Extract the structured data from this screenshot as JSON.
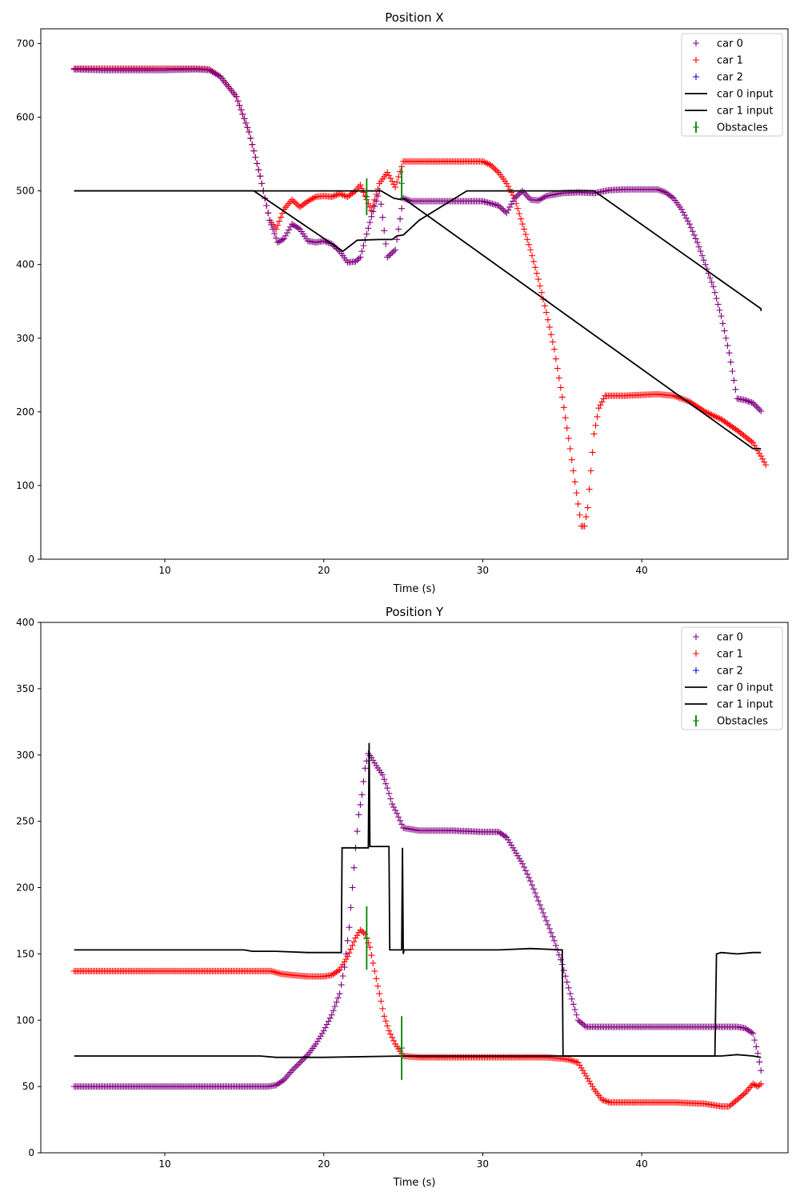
{
  "chart_data": [
    {
      "type": "scatter",
      "title": "Position X",
      "xlabel": "Time (s)",
      "ylabel": "",
      "xlim": [
        2.2,
        49.2
      ],
      "ylim": [
        0,
        720
      ],
      "xticks": [
        10,
        20,
        30,
        40
      ],
      "yticks": [
        0,
        100,
        200,
        300,
        400,
        500,
        600,
        700
      ],
      "legend_position": "top-right",
      "legend": [
        "car 0",
        "car 1",
        "car 2",
        "car 0 input",
        "car 1 input",
        "Obstacles"
      ],
      "series": [
        {
          "name": "car 0",
          "kind": "markers",
          "color": "#800080",
          "x": [
            4.3,
            6,
            8,
            10,
            12,
            12.8,
            13.5,
            14.5,
            15.3,
            16,
            16.6,
            17.1,
            17.5,
            18,
            18.5,
            19,
            19.5,
            20,
            20.5,
            21,
            21.5,
            22,
            22.3,
            23,
            23.5,
            24,
            24.5,
            25,
            25.5,
            26,
            27,
            28,
            29,
            30,
            31,
            31.5,
            32,
            32.5,
            33,
            33.5,
            34,
            35,
            36,
            37,
            38,
            39,
            40,
            41,
            41.5,
            42,
            42.5,
            43,
            43.5,
            44,
            44.5,
            45,
            45.5,
            46,
            46.5,
            47,
            47.5
          ],
          "y": [
            665,
            664,
            664,
            664,
            665,
            664,
            655,
            628,
            580,
            520,
            460,
            430,
            435,
            455,
            448,
            432,
            430,
            432,
            428,
            418,
            403,
            404,
            410,
            465,
            500,
            410,
            420,
            490,
            486,
            486,
            486,
            486,
            486,
            486,
            480,
            470,
            490,
            500,
            488,
            487,
            493,
            497,
            498,
            497,
            501,
            502,
            502,
            502,
            498,
            490,
            475,
            455,
            430,
            400,
            370,
            330,
            280,
            218,
            216,
            212,
            201
          ]
        },
        {
          "name": "car 1",
          "kind": "markers",
          "color": "#ff0000",
          "x": [
            4.3,
            6,
            8,
            10,
            12,
            12.8,
            13.5,
            14.5,
            15.3,
            16,
            16.6,
            17,
            17.5,
            18,
            18.5,
            19,
            19.5,
            20,
            20.5,
            21,
            21.5,
            22,
            22.3,
            23,
            23.5,
            24,
            24.5,
            25,
            25.5,
            26,
            28,
            30,
            30.5,
            31,
            31.5,
            32,
            32.5,
            33,
            33.5,
            34,
            34.5,
            35,
            35.5,
            36,
            36.2,
            36.4,
            36.6,
            36.8,
            37,
            37.3,
            37.7,
            38,
            39,
            40,
            41,
            42,
            43,
            44,
            45,
            46,
            47,
            47.5,
            47.8
          ],
          "y": [
            666,
            666,
            666,
            666,
            666,
            665,
            655,
            628,
            580,
            520,
            460,
            448,
            475,
            488,
            478,
            486,
            492,
            493,
            492,
            496,
            492,
            500,
            508,
            473,
            510,
            525,
            505,
            540,
            540,
            540,
            540,
            540,
            535,
            525,
            510,
            490,
            455,
            420,
            380,
            335,
            285,
            220,
            150,
            75,
            45,
            45,
            70,
            120,
            170,
            205,
            222,
            222,
            222,
            223,
            224,
            222,
            214,
            200,
            190,
            175,
            158,
            140,
            128
          ]
        },
        {
          "name": "car 2",
          "kind": "markers",
          "color": "#0000ff",
          "x": [],
          "y": []
        },
        {
          "name": "car 0 input",
          "kind": "line",
          "color": "#000000",
          "x": [
            4.3,
            15.6,
            21.2,
            22.1,
            23.5,
            24.3,
            24.6,
            25,
            26,
            29,
            37,
            47.5,
            47.5
          ],
          "y": [
            500,
            500,
            418,
            433,
            434,
            434,
            439,
            440,
            460,
            500,
            500,
            340,
            337
          ]
        },
        {
          "name": "car 1 input",
          "kind": "line",
          "color": "#000000",
          "x": [
            4.3,
            22,
            23.6,
            24.4,
            24.9,
            25,
            47,
            47.5
          ],
          "y": [
            500,
            500,
            500,
            490,
            488,
            490,
            150,
            150
          ]
        },
        {
          "name": "Obstacles",
          "kind": "errorbar",
          "color": "#008000",
          "x": [
            22.7,
            24.9
          ],
          "y": [
            492,
            510
          ],
          "yerr": [
            25,
            22
          ]
        }
      ]
    },
    {
      "type": "scatter",
      "title": "Position Y",
      "xlabel": "Time (s)",
      "ylabel": "",
      "xlim": [
        2.2,
        49.2
      ],
      "ylim": [
        0,
        400
      ],
      "xticks": [
        10,
        20,
        30,
        40
      ],
      "yticks": [
        0,
        50,
        100,
        150,
        200,
        250,
        300,
        350,
        400
      ],
      "legend_position": "top-right",
      "legend": [
        "car 0",
        "car 1",
        "car 2",
        "car 0 input",
        "car 1 input",
        "Obstacles"
      ],
      "series": [
        {
          "name": "car 0",
          "kind": "markers",
          "color": "#800080",
          "x": [
            4.3,
            8,
            12,
            16,
            16.5,
            17,
            17.5,
            18,
            18.5,
            19,
            19.5,
            20,
            20.5,
            21,
            21.3,
            21.6,
            21.8,
            22,
            22.2,
            22.4,
            22.6,
            22.8,
            23,
            23.3,
            23.7,
            24,
            24.3,
            24.6,
            25,
            26,
            28,
            30,
            31,
            31.5,
            32,
            32.5,
            33,
            33.5,
            34,
            34.5,
            35,
            35.5,
            36,
            36.5,
            37,
            37.2,
            37.5,
            38,
            40,
            42,
            44,
            45,
            46,
            46.5,
            47,
            47.3,
            47.5
          ],
          "y": [
            50,
            50,
            50,
            50,
            50,
            51,
            55,
            62,
            68,
            74,
            82,
            92,
            104,
            120,
            140,
            170,
            200,
            230,
            255,
            270,
            290,
            301,
            298,
            292,
            285,
            275,
            263,
            256,
            245,
            243,
            243,
            242,
            242,
            238,
            228,
            218,
            205,
            190,
            175,
            160,
            142,
            120,
            100,
            95,
            95,
            95,
            95,
            95,
            95,
            95,
            95,
            95,
            95,
            94,
            90,
            75,
            62
          ]
        },
        {
          "name": "car 1",
          "kind": "markers",
          "color": "#ff0000",
          "x": [
            4.3,
            8,
            12,
            16,
            16.7,
            17.3,
            18,
            19,
            20,
            20.5,
            21,
            21.5,
            22,
            22.3,
            22.6,
            22.9,
            23.2,
            23.5,
            23.8,
            24.1,
            24.5,
            25,
            26,
            28,
            30,
            32,
            34,
            35,
            35.5,
            36,
            36.5,
            37,
            37.5,
            38,
            40,
            42,
            44,
            45,
            45.5,
            46,
            46.5,
            47,
            47.3,
            47.5
          ],
          "y": [
            137,
            137,
            137,
            137,
            137,
            135,
            134,
            133,
            133,
            134,
            138,
            148,
            162,
            168,
            165,
            155,
            137,
            120,
            103,
            92,
            82,
            73,
            72,
            72,
            72,
            72,
            72,
            71,
            70,
            68,
            58,
            48,
            40,
            38,
            38,
            38,
            37,
            35,
            35,
            40,
            45,
            52,
            50,
            52
          ]
        },
        {
          "name": "car 2",
          "kind": "markers",
          "color": "#0000ff",
          "x": [],
          "y": []
        },
        {
          "name": "car 0 input",
          "kind": "line",
          "color": "#000000",
          "x": [
            4.3,
            15,
            15.5,
            17,
            19,
            20,
            21.1,
            21.15,
            22.8,
            22.85,
            22.9,
            24.1,
            24.15,
            24.9,
            24.95,
            25,
            25.05,
            26,
            30,
            31,
            33,
            35,
            35.05,
            44.6,
            44.7,
            45,
            46,
            47,
            47.5
          ],
          "y": [
            153,
            153,
            152,
            152,
            151,
            151,
            151,
            230,
            230,
            309,
            231,
            231,
            153,
            153,
            230,
            150,
            153,
            153,
            153,
            153,
            154,
            153,
            73,
            73,
            150,
            151,
            150,
            151,
            151
          ]
        },
        {
          "name": "car 1 input",
          "kind": "line",
          "color": "#000000",
          "x": [
            4.3,
            16,
            17,
            20,
            25,
            30,
            35,
            40,
            45,
            46,
            47,
            47.5
          ],
          "y": [
            73,
            73,
            72,
            72,
            73,
            73,
            73,
            73,
            73,
            74,
            73,
            72
          ]
        },
        {
          "name": "Obstacles",
          "kind": "errorbar",
          "color": "#008000",
          "x": [
            22.7,
            24.9
          ],
          "y": [
            162,
            79
          ],
          "yerr": [
            24,
            24
          ]
        }
      ]
    }
  ]
}
